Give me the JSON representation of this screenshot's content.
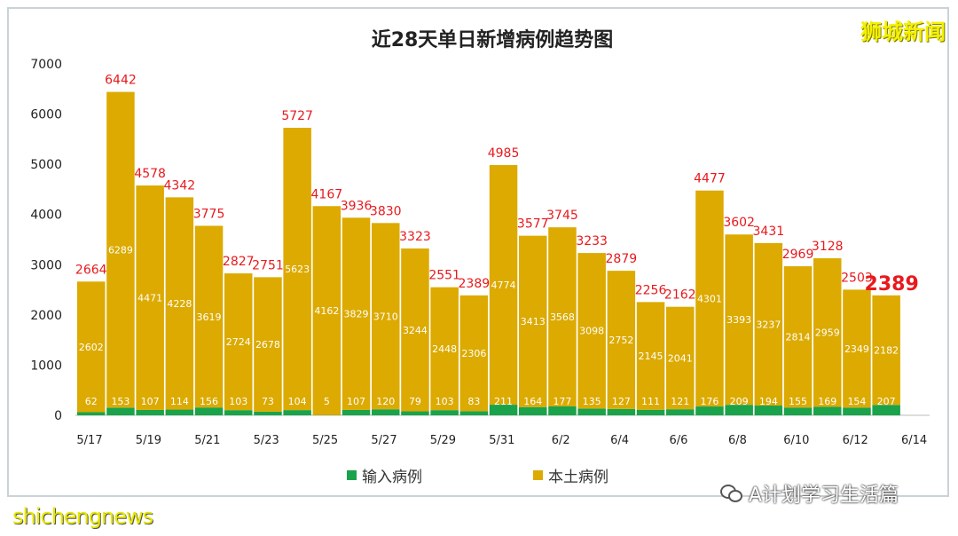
{
  "brand": "狮城新闻",
  "watermark_left": "shichengnews",
  "watermark_right": "A计划学习生活篇",
  "colors": {
    "local": "#dcaa00",
    "imported": "#1aa34a",
    "total_label": "#e8191d",
    "local_label": "#ffffff"
  },
  "chart_data": {
    "type": "bar",
    "stacked": true,
    "title": "近28天单日新增病例趋势图",
    "xlabel": "",
    "ylabel": "",
    "ylim": [
      0,
      7000
    ],
    "yticks": [
      0,
      1000,
      2000,
      3000,
      4000,
      5000,
      6000,
      7000
    ],
    "xtick_labels": [
      "5/17",
      "5/19",
      "5/21",
      "5/23",
      "5/25",
      "5/27",
      "5/29",
      "5/31",
      "6/2",
      "6/4",
      "6/6",
      "6/8",
      "6/10",
      "6/12",
      "6/14"
    ],
    "grid": false,
    "legend_position": "bottom",
    "categories": [
      "5/17",
      "5/18",
      "5/19",
      "5/20",
      "5/21",
      "5/22",
      "5/23",
      "5/24",
      "5/25",
      "5/26",
      "5/27",
      "5/28",
      "5/29",
      "5/30",
      "5/31",
      "6/1",
      "6/2",
      "6/3",
      "6/4",
      "6/5",
      "6/6",
      "6/7",
      "6/8",
      "6/9",
      "6/10",
      "6/11",
      "6/12",
      "6/13"
    ],
    "series": [
      {
        "name": "输入病例",
        "values": [
          62,
          153,
          107,
          114,
          156,
          103,
          73,
          104,
          5,
          107,
          120,
          79,
          103,
          83,
          211,
          164,
          177,
          135,
          127,
          111,
          121,
          176,
          209,
          194,
          155,
          169,
          154,
          207
        ]
      },
      {
        "name": "本土病例",
        "values": [
          2602,
          6289,
          4471,
          4228,
          3619,
          2724,
          2678,
          5623,
          4162,
          3829,
          3710,
          3244,
          2448,
          2306,
          4774,
          3413,
          3568,
          3098,
          2752,
          2145,
          2041,
          4301,
          3393,
          3237,
          2814,
          2959,
          2349,
          2182
        ]
      }
    ],
    "totals": [
      2664,
      6442,
      4578,
      4342,
      3775,
      2827,
      2751,
      5727,
      4167,
      3936,
      3830,
      3323,
      2551,
      2389,
      4985,
      3577,
      3745,
      3233,
      2879,
      2256,
      2162,
      4477,
      3602,
      3431,
      2969,
      3128,
      2503,
      2389
    ]
  }
}
